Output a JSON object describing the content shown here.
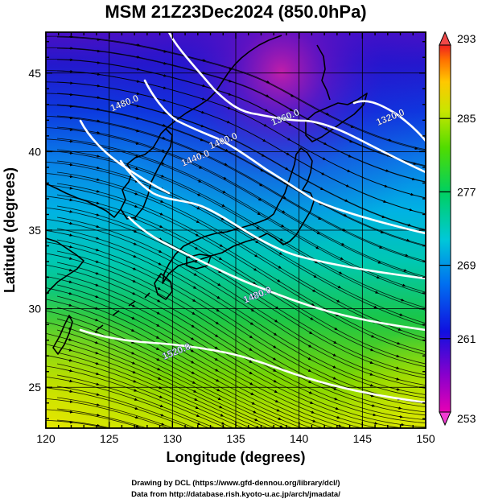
{
  "title": "MSM 21Z23Dec2024 (850.0hPa)",
  "xlabel": "Longitude (degrees)",
  "ylabel": "Latitude  (degrees)",
  "x_ticks": [
    120,
    125,
    130,
    135,
    140,
    145,
    150
  ],
  "y_ticks": [
    25,
    30,
    35,
    40,
    45
  ],
  "x_range": [
    120,
    150
  ],
  "y_range": [
    22.4,
    47.6
  ],
  "colorbar": {
    "labels": [
      "293",
      "285",
      "277",
      "269",
      "261",
      "253"
    ],
    "range": [
      253,
      293
    ]
  },
  "contour_labels": [
    {
      "text": "1480.0",
      "lon": 126.3,
      "lat": 42.9
    },
    {
      "text": "1440.0",
      "lon": 131.9,
      "lat": 39.4
    },
    {
      "text": "1400.0",
      "lon": 134.1,
      "lat": 40.5
    },
    {
      "text": "1360.0",
      "lon": 139.0,
      "lat": 42.0
    },
    {
      "text": "1320.0",
      "lon": 147.3,
      "lat": 42.0
    },
    {
      "text": "1480.0",
      "lon": 136.8,
      "lat": 30.7
    },
    {
      "text": "1520.0",
      "lon": 130.4,
      "lat": 27.1
    }
  ],
  "credits": [
    "Drawing by DCL (https://www.gfd-dennou.org/library/dcl/)",
    "Data from http://database.rish.kyoto-u.ac.jp/arch/jmadata/"
  ],
  "colors": {
    "frame": "#000000",
    "contour": "#ffffff",
    "coastline": "#000000"
  }
}
